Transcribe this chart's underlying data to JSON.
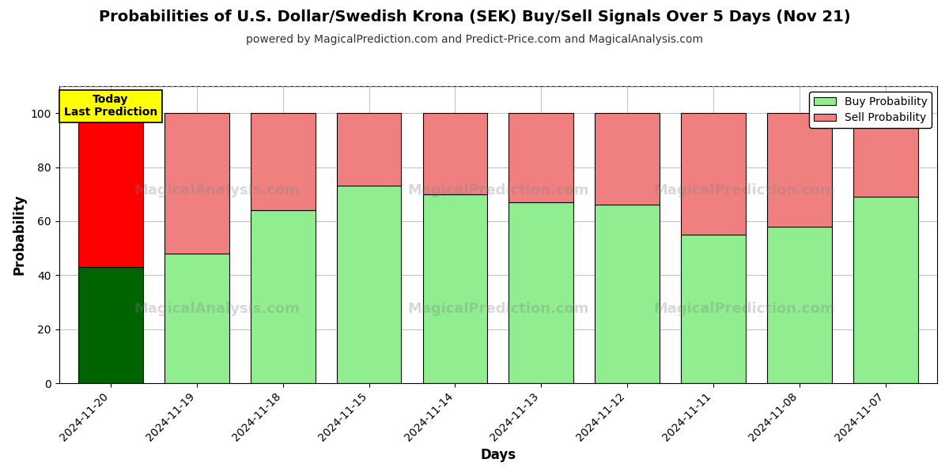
{
  "title": "Probabilities of U.S. Dollar/Swedish Krona (SEK) Buy/Sell Signals Over 5 Days (Nov 21)",
  "subtitle": "powered by MagicalPrediction.com and Predict-Price.com and MagicalAnalysis.com",
  "xlabel": "Days",
  "ylabel": "Probability",
  "dates": [
    "2024-11-20",
    "2024-11-19",
    "2024-11-18",
    "2024-11-15",
    "2024-11-14",
    "2024-11-13",
    "2024-11-12",
    "2024-11-11",
    "2024-11-08",
    "2024-11-07"
  ],
  "buy_probs": [
    43,
    48,
    64,
    73,
    70,
    67,
    66,
    55,
    58,
    69
  ],
  "sell_probs": [
    57,
    52,
    36,
    27,
    30,
    33,
    34,
    45,
    42,
    31
  ],
  "buy_colors": [
    "#006400",
    "#90EE90",
    "#90EE90",
    "#90EE90",
    "#90EE90",
    "#90EE90",
    "#90EE90",
    "#90EE90",
    "#90EE90",
    "#90EE90"
  ],
  "sell_colors": [
    "#FF0000",
    "#F08080",
    "#F08080",
    "#F08080",
    "#F08080",
    "#F08080",
    "#F08080",
    "#F08080",
    "#F08080",
    "#F08080"
  ],
  "ylim": [
    0,
    110
  ],
  "yticks": [
    0,
    20,
    40,
    60,
    80,
    100
  ],
  "dashed_line_y": 110,
  "legend_buy_color": "#90EE90",
  "legend_sell_color": "#F08080",
  "annotation_text": "Today\nLast Prediction",
  "annotation_bg": "#FFFF00",
  "bar_edge_color": "#000000",
  "bar_linewidth": 0.8,
  "figsize": [
    12,
    6
  ],
  "dpi": 100
}
